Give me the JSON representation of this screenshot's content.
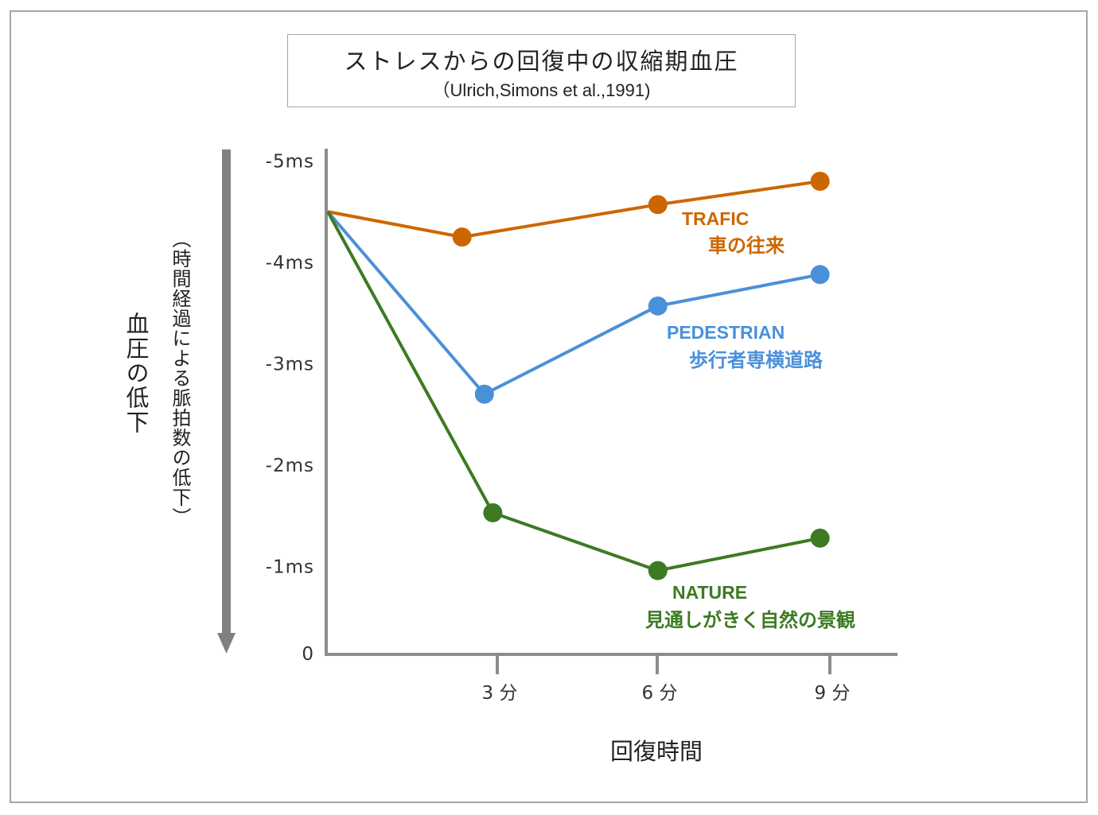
{
  "chart_data": {
    "type": "line",
    "title": "ストレスからの回復中の収縮期血圧",
    "subtitle": "（Ulrich,Simons et al.,1991)",
    "xlabel": "回復時間",
    "ylabel": "血圧の低下",
    "ylabel_sub": "（時間経過による脈拍数の低下）",
    "x_ticks": [
      {
        "value": 3,
        "label": "3 分"
      },
      {
        "value": 6,
        "label": "6 分"
      },
      {
        "value": 9,
        "label": "9 分"
      }
    ],
    "y_ticks": [
      {
        "value": -5,
        "label": "-5ms"
      },
      {
        "value": -4,
        "label": "-4ms"
      },
      {
        "value": -3,
        "label": "-3ms"
      },
      {
        "value": -2,
        "label": "-2ms"
      },
      {
        "value": -1,
        "label": "-1ms"
      },
      {
        "value": 0,
        "label": "0"
      }
    ],
    "xlim": [
      0,
      10.2
    ],
    "ylim": [
      0,
      -5.1
    ],
    "grid": false,
    "start_point": {
      "x": 0,
      "y": -4.5
    },
    "series": [
      {
        "name": "TRAFIC",
        "name_ja": "車の往来",
        "color": "#cc6600",
        "points": [
          {
            "x": 2.4,
            "y": -4.25
          },
          {
            "x": 5.9,
            "y": -4.57
          },
          {
            "x": 8.8,
            "y": -4.8
          }
        ]
      },
      {
        "name": "PEDESTRIAN",
        "name_ja": "歩行者専横道路",
        "color": "#4a90d9",
        "points": [
          {
            "x": 2.8,
            "y": -2.7
          },
          {
            "x": 5.9,
            "y": -3.57
          },
          {
            "x": 8.8,
            "y": -3.88
          }
        ]
      },
      {
        "name": "NATURE",
        "name_ja": "見通しがきく自然の景観",
        "color": "#3d7a23",
        "points": [
          {
            "x": 2.95,
            "y": -1.53
          },
          {
            "x": 5.9,
            "y": -0.96
          },
          {
            "x": 8.8,
            "y": -1.28
          }
        ]
      }
    ]
  }
}
